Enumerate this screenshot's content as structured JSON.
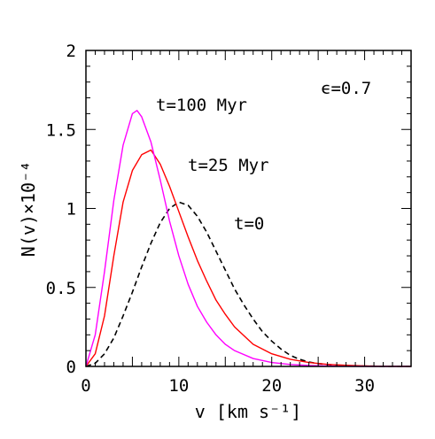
{
  "chart_data": {
    "type": "line",
    "xlabel": "v [km s⁻¹]",
    "ylabel": "N(v)×10⁻⁴",
    "xlim": [
      0,
      35
    ],
    "ylim": [
      0,
      2
    ],
    "x_ticks": [
      "0",
      "10",
      "20",
      "30"
    ],
    "y_ticks": [
      "0",
      "0.5",
      "1",
      "1.5",
      "2"
    ],
    "grid": false,
    "annotations": [
      "t=100 Myr",
      "t=25 Myr",
      "t=0",
      "ϵ=0.7"
    ],
    "series": [
      {
        "name": "t=0",
        "color": "#000000",
        "dash": "dashed",
        "x": [
          0,
          1,
          2,
          3,
          4,
          5,
          6,
          7,
          8,
          9,
          10,
          11,
          12,
          13,
          14,
          15,
          16,
          17,
          18,
          19,
          20,
          21,
          22,
          23,
          24,
          25,
          26,
          27,
          28,
          30,
          32,
          35
        ],
        "y": [
          0,
          0.02,
          0.08,
          0.18,
          0.32,
          0.47,
          0.63,
          0.78,
          0.91,
          1.0,
          1.04,
          1.02,
          0.95,
          0.85,
          0.73,
          0.61,
          0.49,
          0.39,
          0.3,
          0.22,
          0.16,
          0.11,
          0.07,
          0.045,
          0.028,
          0.018,
          0.012,
          0.008,
          0.005,
          0.002,
          0.0005,
          0
        ]
      },
      {
        "name": "t=25 Myr",
        "color": "#ff0000",
        "dash": "solid",
        "x": [
          0,
          1,
          2,
          3,
          4,
          5,
          6,
          7,
          8,
          9,
          10,
          11,
          12,
          13,
          14,
          15,
          16,
          18,
          20,
          22,
          24,
          26,
          28,
          30,
          32,
          35
        ],
        "y": [
          0,
          0.08,
          0.32,
          0.7,
          1.04,
          1.24,
          1.34,
          1.37,
          1.28,
          1.14,
          0.98,
          0.82,
          0.67,
          0.54,
          0.42,
          0.33,
          0.25,
          0.14,
          0.08,
          0.045,
          0.025,
          0.013,
          0.007,
          0.003,
          0.001,
          0
        ]
      },
      {
        "name": "t=100 Myr",
        "color": "#ff00ff",
        "dash": "solid",
        "x": [
          0,
          1,
          2,
          3,
          4,
          5,
          5.5,
          6,
          7,
          8,
          9,
          10,
          11,
          12,
          13,
          14,
          15,
          16,
          18,
          20,
          22,
          24,
          26,
          28,
          30,
          35
        ],
        "y": [
          0,
          0.2,
          0.6,
          1.05,
          1.4,
          1.6,
          1.62,
          1.58,
          1.42,
          1.18,
          0.92,
          0.7,
          0.52,
          0.38,
          0.28,
          0.2,
          0.14,
          0.1,
          0.05,
          0.025,
          0.012,
          0.006,
          0.003,
          0.001,
          0.0005,
          0
        ]
      }
    ]
  }
}
